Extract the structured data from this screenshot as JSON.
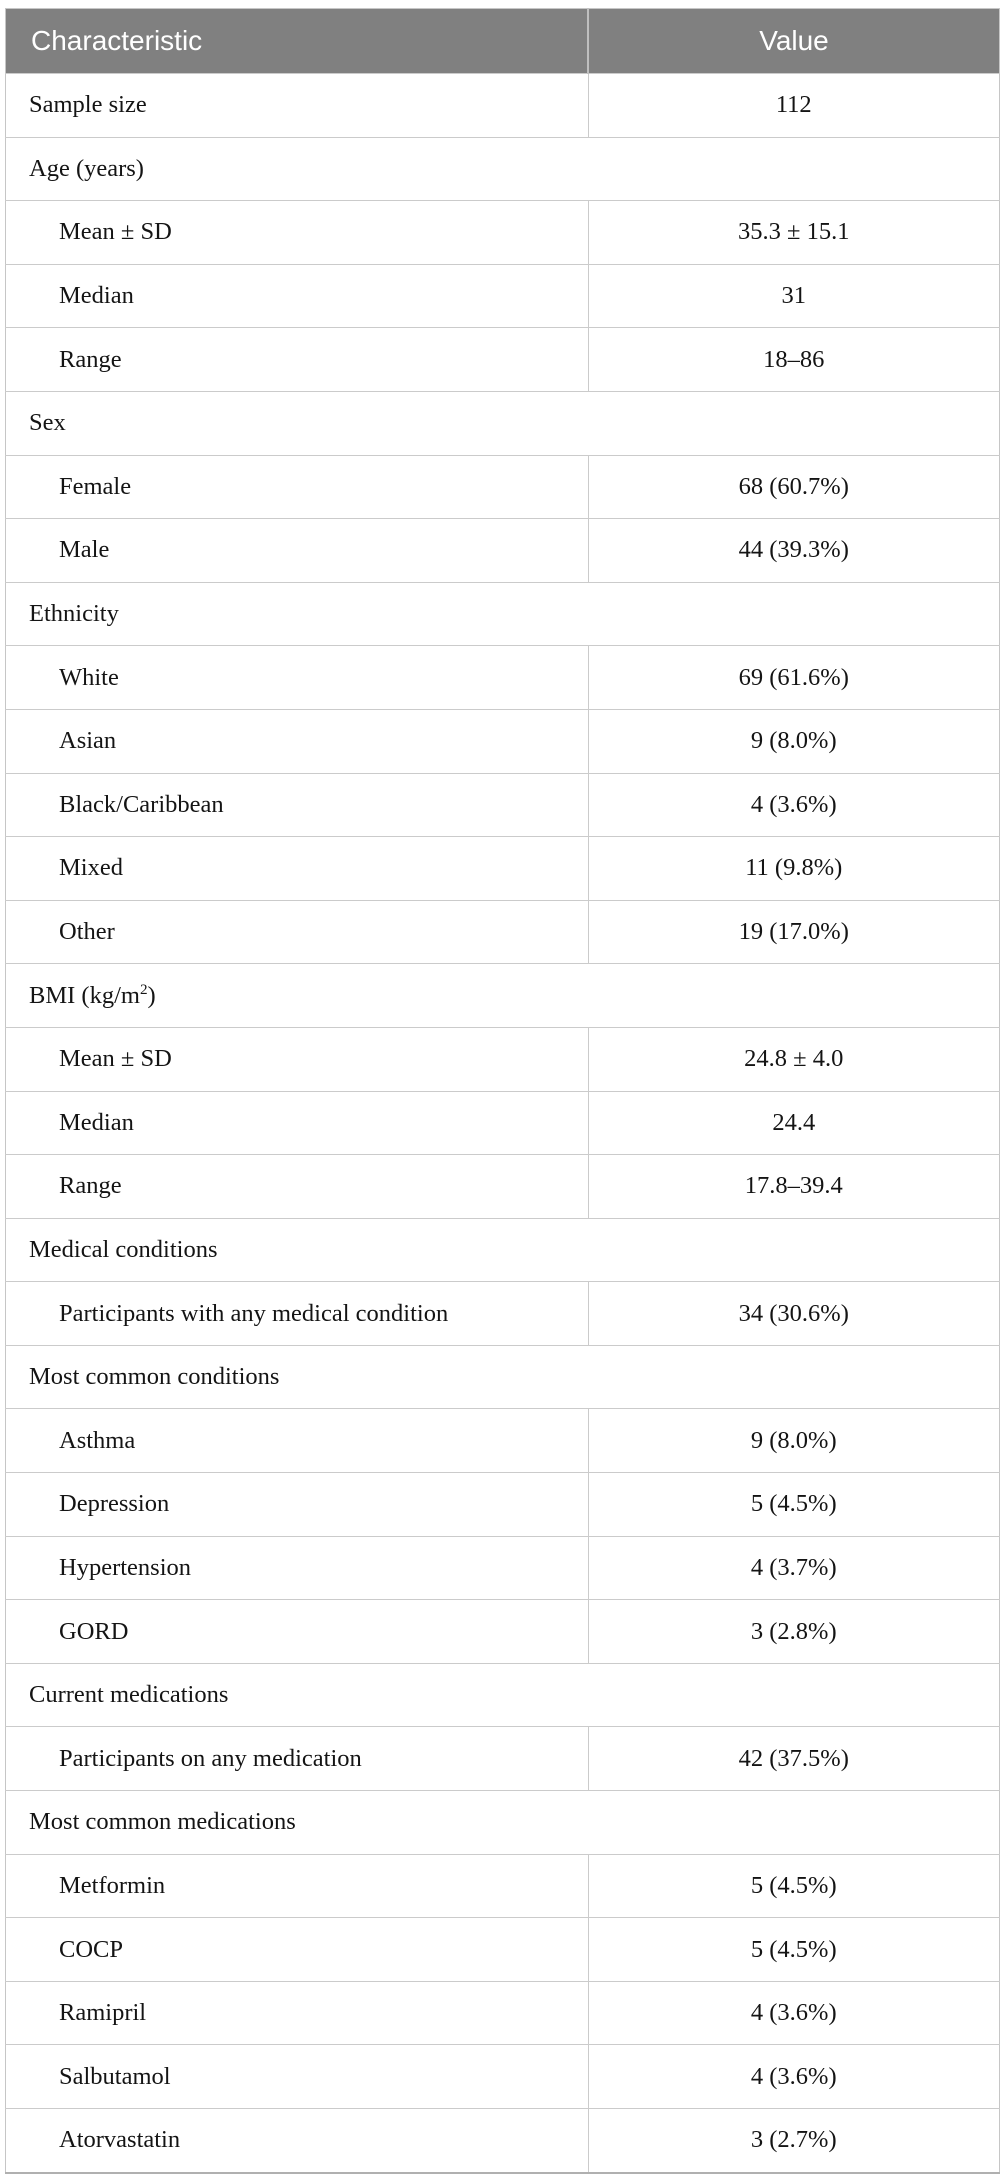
{
  "colors": {
    "header_bg": "#808080",
    "header_text": "#ffffff",
    "row_border": "#cbcbcb",
    "bottom_border": "#b0b0b0",
    "body_text": "#141414"
  },
  "table": {
    "columns": [
      {
        "label": "Characteristic"
      },
      {
        "label": "Value"
      }
    ],
    "rows": [
      {
        "type": "data",
        "label": "Sample size",
        "value": "112",
        "indent": false
      },
      {
        "type": "section",
        "label": "Age (years)"
      },
      {
        "type": "data",
        "label": "Mean ± SD",
        "value": "35.3 ± 15.1",
        "indent": true
      },
      {
        "type": "data",
        "label": "Median",
        "value": "31",
        "indent": true
      },
      {
        "type": "data",
        "label": "Range",
        "value": "18–86",
        "indent": true
      },
      {
        "type": "section",
        "label": "Sex"
      },
      {
        "type": "data",
        "label": "Female",
        "value": "68 (60.7%)",
        "indent": true
      },
      {
        "type": "data",
        "label": "Male",
        "value": "44 (39.3%)",
        "indent": true
      },
      {
        "type": "section",
        "label": "Ethnicity"
      },
      {
        "type": "data",
        "label": "White",
        "value": "69 (61.6%)",
        "indent": true
      },
      {
        "type": "data",
        "label": "Asian",
        "value": "9 (8.0%)",
        "indent": true
      },
      {
        "type": "data",
        "label": "Black/Caribbean",
        "value": "4 (3.6%)",
        "indent": true
      },
      {
        "type": "data",
        "label": "Mixed",
        "value": "11 (9.8%)",
        "indent": true
      },
      {
        "type": "data",
        "label": "Other",
        "value": "19 (17.0%)",
        "indent": true
      },
      {
        "type": "section",
        "label": "BMI (kg/m²)"
      },
      {
        "type": "data",
        "label": "Mean ± SD",
        "value": "24.8 ± 4.0",
        "indent": true
      },
      {
        "type": "data",
        "label": "Median",
        "value": "24.4",
        "indent": true
      },
      {
        "type": "data",
        "label": "Range",
        "value": "17.8–39.4",
        "indent": true
      },
      {
        "type": "section",
        "label": "Medical conditions"
      },
      {
        "type": "data",
        "label": "Participants with any medical condition",
        "value": "34 (30.6%)",
        "indent": true
      },
      {
        "type": "section",
        "label": "Most common conditions"
      },
      {
        "type": "data",
        "label": "Asthma",
        "value": "9 (8.0%)",
        "indent": true
      },
      {
        "type": "data",
        "label": "Depression",
        "value": "5 (4.5%)",
        "indent": true
      },
      {
        "type": "data",
        "label": "Hypertension",
        "value": "4 (3.7%)",
        "indent": true
      },
      {
        "type": "data",
        "label": "GORD",
        "value": "3 (2.8%)",
        "indent": true
      },
      {
        "type": "section",
        "label": "Current medications"
      },
      {
        "type": "data",
        "label": "Participants on any medication",
        "value": "42 (37.5%)",
        "indent": true
      },
      {
        "type": "section",
        "label": "Most common medications"
      },
      {
        "type": "data",
        "label": "Metformin",
        "value": "5 (4.5%)",
        "indent": true
      },
      {
        "type": "data",
        "label": "COCP",
        "value": "5 (4.5%)",
        "indent": true
      },
      {
        "type": "data",
        "label": "Ramipril",
        "value": "4 (3.6%)",
        "indent": true
      },
      {
        "type": "data",
        "label": "Salbutamol",
        "value": "4 (3.6%)",
        "indent": true
      },
      {
        "type": "data",
        "label": "Atorvastatin",
        "value": "3 (2.7%)",
        "indent": true
      }
    ]
  }
}
